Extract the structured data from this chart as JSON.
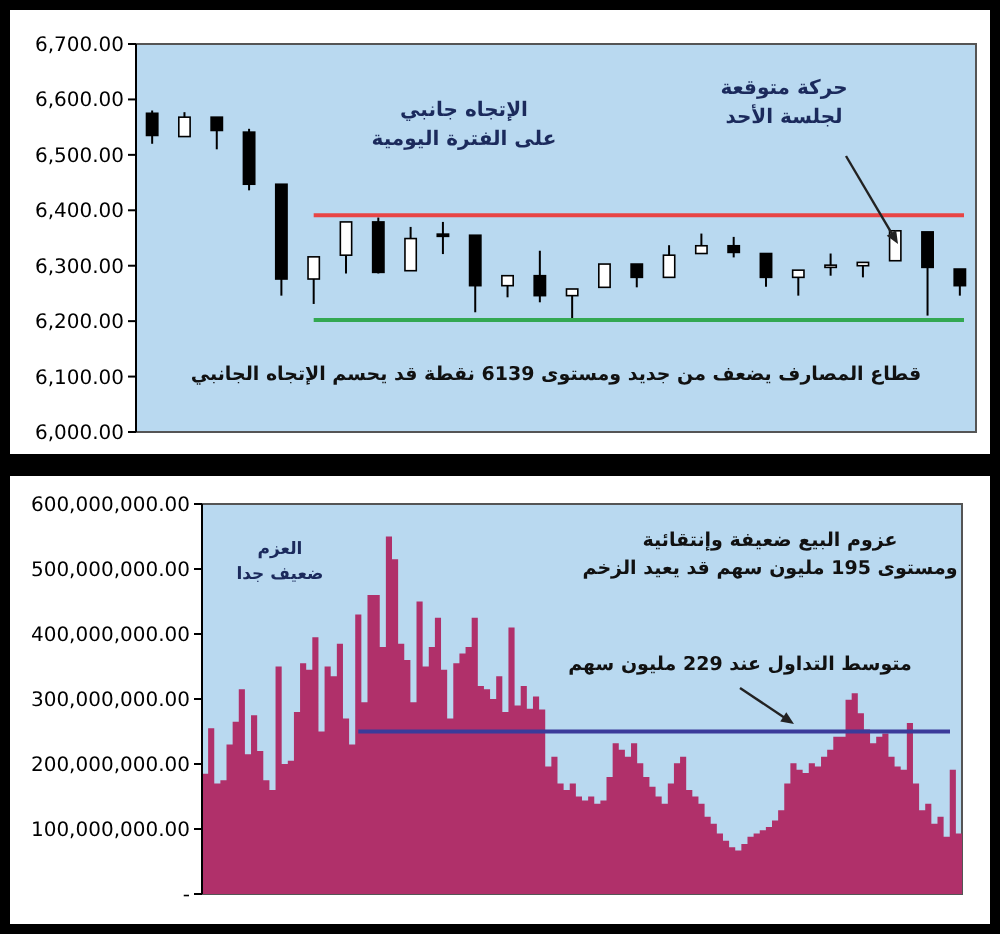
{
  "chart_data": [
    {
      "type": "candlestick",
      "categories": [
        null,
        null,
        null,
        null,
        null,
        null,
        null,
        null,
        null,
        null,
        null,
        null,
        null,
        null,
        null,
        null,
        null,
        null,
        null,
        null,
        null,
        null,
        null,
        null,
        null,
        null
      ],
      "ohlc": [
        [
          6575,
          6580,
          6520,
          6535
        ],
        [
          6533,
          6577,
          6533,
          6568
        ],
        [
          6568,
          6568,
          6510,
          6544
        ],
        [
          6541,
          6547,
          6436,
          6447
        ],
        [
          6447,
          6447,
          6246,
          6276
        ],
        [
          6276,
          6316,
          6231,
          6316
        ],
        [
          6319,
          6379,
          6286,
          6379
        ],
        [
          6379,
          6387,
          6286,
          6288
        ],
        [
          6291,
          6370,
          6291,
          6349
        ],
        [
          6357,
          6379,
          6321,
          6353
        ],
        [
          6355,
          6355,
          6216,
          6264
        ],
        [
          6264,
          6282,
          6243,
          6282
        ],
        [
          6282,
          6327,
          6234,
          6246
        ],
        [
          6246,
          6258,
          6204,
          6258
        ],
        [
          6261,
          6303,
          6261,
          6303
        ],
        [
          6303,
          6303,
          6261,
          6279
        ],
        [
          6279,
          6337,
          6279,
          6319
        ],
        [
          6322,
          6358,
          6322,
          6336
        ],
        [
          6336,
          6352,
          6315,
          6324
        ],
        [
          6322,
          6322,
          6262,
          6279
        ],
        [
          6279,
          6292,
          6246,
          6292
        ],
        [
          6297,
          6322,
          6282,
          6301
        ],
        [
          6300,
          6306,
          6279,
          6306
        ],
        [
          6309,
          6363,
          6309,
          6363
        ],
        [
          6361,
          6361,
          6210,
          6297
        ],
        [
          6294,
          6294,
          6246,
          6264
        ]
      ],
      "ylim": [
        6000,
        6700
      ],
      "yticks": [
        {
          "value": 6000,
          "label": "6,000.00"
        },
        {
          "value": 6100,
          "label": "6,100.00"
        },
        {
          "value": 6200,
          "label": "6,200.00"
        },
        {
          "value": 6300,
          "label": "6,300.00"
        },
        {
          "value": 6400,
          "label": "6,400.00"
        },
        {
          "value": 6500,
          "label": "6,500.00"
        },
        {
          "value": 6600,
          "label": "6,600.00"
        },
        {
          "value": 6700,
          "label": "6,700.00"
        }
      ],
      "ref_lines": [
        {
          "axis": "y",
          "value": 6391,
          "color": "#e84545"
        },
        {
          "axis": "y",
          "value": 6202,
          "color": "#33a852"
        }
      ],
      "annotations": [
        "الإتجاه جانبي\nعلى الفترة اليومية",
        "حركة متوقعة\nلجلسة الأحد",
        "قطاع المصارف يضعف من جديد ومستوى 6139 نقطة قد يحسم الإتجاه الجانبي"
      ]
    },
    {
      "type": "area",
      "categories": [
        null,
        null,
        null,
        null,
        null,
        null,
        null,
        null,
        null,
        null,
        null,
        null,
        null,
        null,
        null,
        null,
        null,
        null,
        null,
        null,
        null,
        null,
        null,
        null,
        null,
        null,
        null,
        null,
        null,
        null,
        null,
        null,
        null,
        null,
        null,
        null,
        null,
        null,
        null,
        null,
        null,
        null,
        null,
        null,
        null,
        null,
        null,
        null,
        null,
        null,
        null,
        null,
        null,
        null,
        null,
        null,
        null,
        null,
        null,
        null,
        null,
        null,
        null,
        null,
        null,
        null,
        null,
        null,
        null,
        null,
        null,
        null,
        null,
        null,
        null,
        null,
        null,
        null,
        null,
        null,
        null,
        null,
        null,
        null,
        null,
        null,
        null,
        null,
        null,
        null,
        null,
        null,
        null,
        null,
        null,
        null,
        null,
        null,
        null,
        null,
        null,
        null,
        null,
        null,
        null,
        null,
        null,
        null,
        null,
        null,
        null,
        null,
        null,
        null,
        null,
        null,
        null,
        null,
        null,
        null,
        null,
        null,
        null,
        null
      ],
      "values": [
        185000000,
        255000000,
        170000000,
        175000000,
        230000000,
        265000000,
        315000000,
        215000000,
        275000000,
        220000000,
        175000000,
        160000000,
        350000000,
        200000000,
        205000000,
        280000000,
        355000000,
        345000000,
        395000000,
        250000000,
        350000000,
        335000000,
        385000000,
        270000000,
        230000000,
        430000000,
        295000000,
        460000000,
        460000000,
        380000000,
        550000000,
        515000000,
        385000000,
        360000000,
        295000000,
        450000000,
        350000000,
        380000000,
        425000000,
        345000000,
        270000000,
        355000000,
        370000000,
        380000000,
        425000000,
        320000000,
        315000000,
        300000000,
        335000000,
        280000000,
        410000000,
        290000000,
        320000000,
        285000000,
        304000000,
        284000000,
        196000000,
        211000000,
        170000000,
        160000000,
        170000000,
        150000000,
        144000000,
        150000000,
        139000000,
        144000000,
        180000000,
        232000000,
        222000000,
        211000000,
        232000000,
        201000000,
        180000000,
        165000000,
        150000000,
        139000000,
        170000000,
        201000000,
        211000000,
        160000000,
        150000000,
        139000000,
        119000000,
        108000000,
        93000000,
        82000000,
        72000000,
        67000000,
        77000000,
        88000000,
        93000000,
        98000000,
        103000000,
        113000000,
        129000000,
        170000000,
        201000000,
        191000000,
        186000000,
        201000000,
        196000000,
        211000000,
        222000000,
        242000000,
        242000000,
        299000000,
        309000000,
        278000000,
        253000000,
        232000000,
        242000000,
        247000000,
        211000000,
        196000000,
        191000000,
        263000000,
        170000000,
        129000000,
        139000000,
        108000000,
        119000000,
        88000000,
        191000000,
        93000000
      ],
      "color": "#b0306a",
      "ylim": [
        0,
        600000000
      ],
      "yticks": [
        {
          "value": 0,
          "label": "-"
        },
        {
          "value": 100000000,
          "label": "100,000,000.00"
        },
        {
          "value": 200000000,
          "label": "200,000,000.00"
        },
        {
          "value": 300000000,
          "label": "300,000,000.00"
        },
        {
          "value": 400000000,
          "label": "400,000,000.00"
        },
        {
          "value": 500000000,
          "label": "500,000,000.00"
        },
        {
          "value": 600000000,
          "label": "600,000,000.00"
        }
      ],
      "ref_lines": [
        {
          "axis": "y",
          "value": 250000000,
          "color": "#3b3b9a"
        }
      ],
      "annotations": [
        "العزم\nضعيف جدا",
        "عزوم البيع ضعيفة وإنتقائية\nومستوى 195 مليون سهم قد يعيد الزخم",
        "متوسط التداول عند 229 مليون سهم"
      ]
    }
  ]
}
